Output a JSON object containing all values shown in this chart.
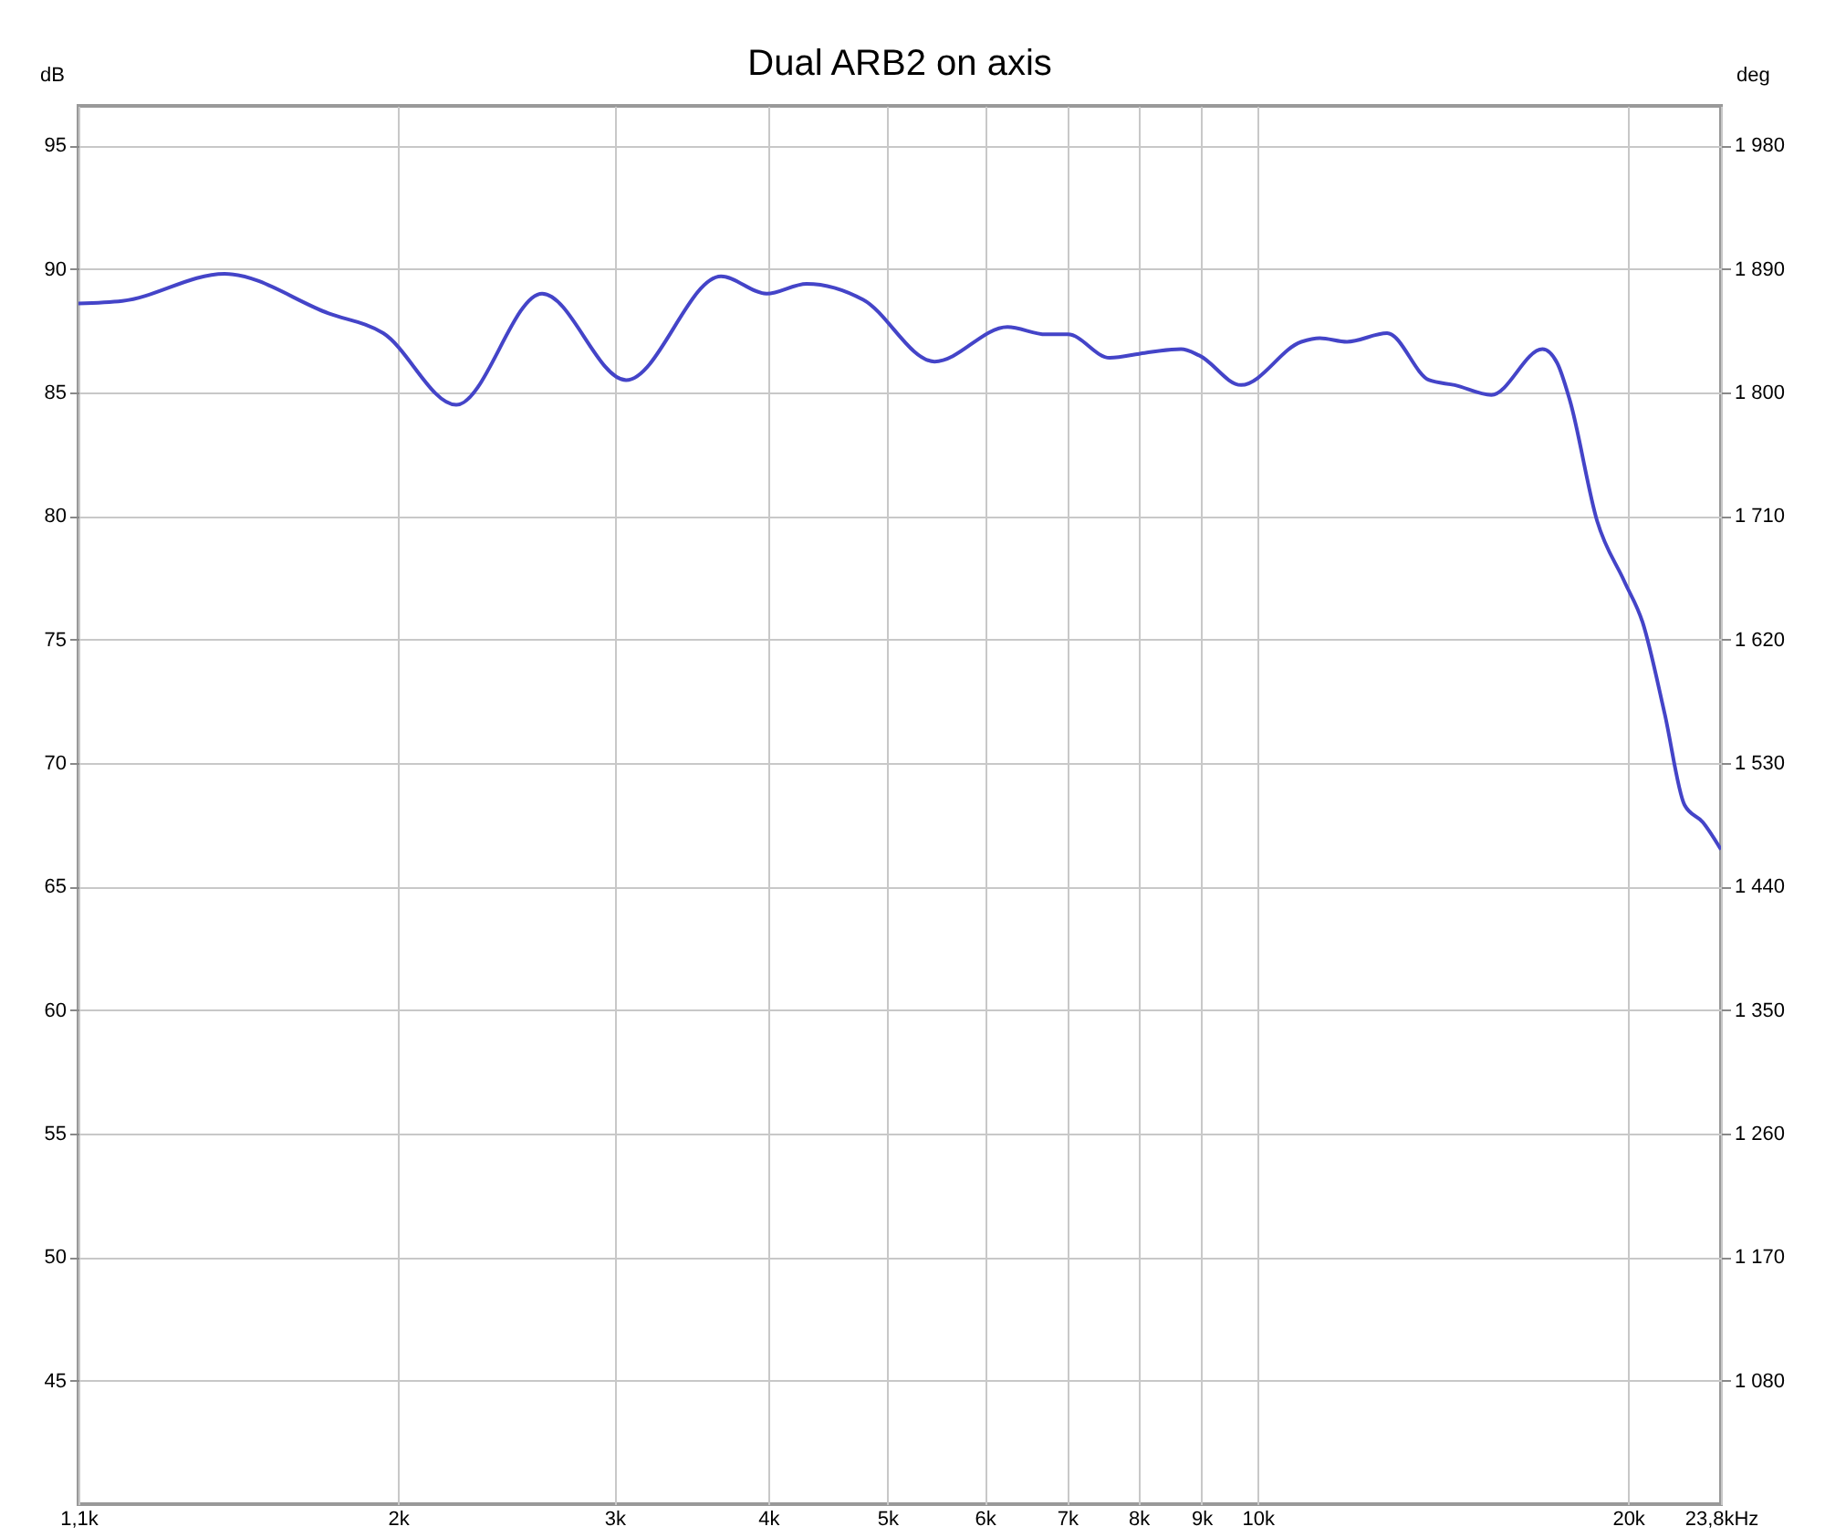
{
  "chart_data": {
    "type": "line",
    "title": "Dual ARB2 on axis",
    "ylabel": "dB",
    "y2label": "deg",
    "x": [
      1.1,
      1.194,
      1.446,
      1.757,
      1.946,
      2.231,
      2.62,
      3.066,
      3.662,
      3.988,
      4.299,
      4.78,
      5.461,
      6.26,
      6.727,
      7.009,
      7.58,
      8.091,
      8.661,
      8.962,
      9.693,
      10.851,
      11.232,
      11.818,
      12.74,
      13.782,
      14.456,
      15.485,
      17.041,
      17.512,
      17.932,
      18.875,
      19.862,
      20.551,
      21.419,
      22.232,
      23.01,
      23.8
    ],
    "series": [
      {
        "color": "#4444c8",
        "values": [
          88.6,
          88.7,
          89.8,
          88.2,
          87.4,
          84.5,
          89.0,
          85.5,
          89.7,
          89.0,
          89.4,
          88.75,
          86.25,
          87.65,
          87.35,
          87.35,
          86.4,
          86.6,
          86.75,
          86.5,
          85.3,
          87.05,
          87.2,
          87.05,
          87.4,
          85.5,
          85.3,
          84.9,
          86.75,
          86.2,
          84.7,
          79.8,
          77.35,
          75.7,
          72.0,
          68.3,
          67.6,
          66.5
        ]
      }
    ],
    "log": "x",
    "xlim": [
      1.1,
      23.8
    ],
    "xticks": [
      {
        "value": 1.1,
        "label": "1,1k"
      },
      {
        "value": 2,
        "label": "2k"
      },
      {
        "value": 3,
        "label": "3k"
      },
      {
        "value": 4,
        "label": "4k"
      },
      {
        "value": 5,
        "label": "5k"
      },
      {
        "value": 6,
        "label": "6k"
      },
      {
        "value": 7,
        "label": "7k"
      },
      {
        "value": 8,
        "label": "8k"
      },
      {
        "value": 9,
        "label": "9k"
      },
      {
        "value": 10,
        "label": "10k"
      },
      {
        "value": 20,
        "label": "20k"
      },
      {
        "value": 23.8,
        "label": "23,8kHz"
      }
    ],
    "ylim": [
      40,
      96.6
    ],
    "yticks": [
      45,
      50,
      55,
      60,
      65,
      70,
      75,
      80,
      85,
      90,
      95
    ],
    "y2lim": [
      990,
      2008.8
    ],
    "y2ticks": [
      {
        "value": 1080,
        "label": "1 080"
      },
      {
        "value": 1170,
        "label": "1 170"
      },
      {
        "value": 1260,
        "label": "1 260"
      },
      {
        "value": 1350,
        "label": "1 350"
      },
      {
        "value": 1440,
        "label": "1 440"
      },
      {
        "value": 1530,
        "label": "1 530"
      },
      {
        "value": 1620,
        "label": "1 620"
      },
      {
        "value": 1710,
        "label": "1 710"
      },
      {
        "value": 1800,
        "label": "1 800"
      },
      {
        "value": 1890,
        "label": "1 890"
      },
      {
        "value": 1980,
        "label": "1 980"
      }
    ],
    "grid": true,
    "line_style": "solid"
  }
}
